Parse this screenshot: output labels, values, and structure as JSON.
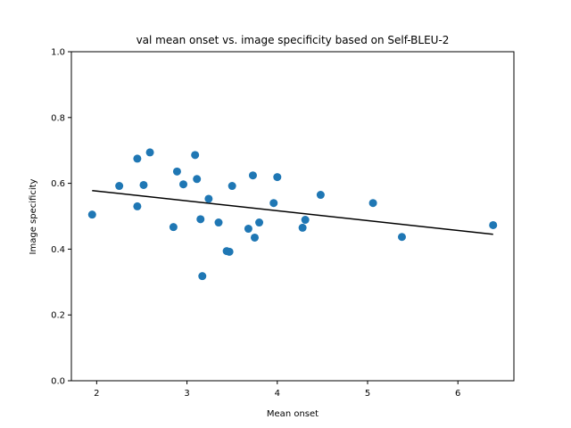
{
  "chart_data": {
    "type": "scatter",
    "title": "val mean onset vs. image specificity based on Self-BLEU-2",
    "xlabel": "Mean onset",
    "ylabel": "Image specificity",
    "xlim": [
      1.72,
      6.62
    ],
    "ylim": [
      0.0,
      1.0
    ],
    "xticks": [
      2,
      3,
      4,
      5,
      6
    ],
    "xtick_labels": [
      "2",
      "3",
      "4",
      "5",
      "6"
    ],
    "yticks": [
      0.0,
      0.2,
      0.4,
      0.6,
      0.8,
      1.0
    ],
    "ytick_labels": [
      "0.0",
      "0.2",
      "0.4",
      "0.6",
      "0.8",
      "1.0"
    ],
    "grid": false,
    "series": [
      {
        "color": "#1f77b4",
        "points": [
          {
            "x": 1.95,
            "y": 0.505
          },
          {
            "x": 2.25,
            "y": 0.592
          },
          {
            "x": 2.45,
            "y": 0.675
          },
          {
            "x": 2.45,
            "y": 0.53
          },
          {
            "x": 2.52,
            "y": 0.595
          },
          {
            "x": 2.59,
            "y": 0.694
          },
          {
            "x": 2.85,
            "y": 0.467
          },
          {
            "x": 2.89,
            "y": 0.636
          },
          {
            "x": 2.96,
            "y": 0.597
          },
          {
            "x": 3.09,
            "y": 0.686
          },
          {
            "x": 3.11,
            "y": 0.613
          },
          {
            "x": 3.15,
            "y": 0.491
          },
          {
            "x": 3.17,
            "y": 0.318
          },
          {
            "x": 3.24,
            "y": 0.553
          },
          {
            "x": 3.35,
            "y": 0.481
          },
          {
            "x": 3.44,
            "y": 0.394
          },
          {
            "x": 3.47,
            "y": 0.392
          },
          {
            "x": 3.5,
            "y": 0.592
          },
          {
            "x": 3.68,
            "y": 0.462
          },
          {
            "x": 3.73,
            "y": 0.624
          },
          {
            "x": 3.75,
            "y": 0.435
          },
          {
            "x": 3.8,
            "y": 0.481
          },
          {
            "x": 3.96,
            "y": 0.54
          },
          {
            "x": 4.0,
            "y": 0.619
          },
          {
            "x": 4.28,
            "y": 0.465
          },
          {
            "x": 4.31,
            "y": 0.489
          },
          {
            "x": 4.48,
            "y": 0.565
          },
          {
            "x": 5.06,
            "y": 0.54
          },
          {
            "x": 5.38,
            "y": 0.437
          },
          {
            "x": 6.39,
            "y": 0.473
          }
        ]
      }
    ],
    "fit_line": {
      "color": "#000000",
      "points": [
        {
          "x": 1.95,
          "y": 0.578
        },
        {
          "x": 6.39,
          "y": 0.445
        }
      ]
    }
  }
}
